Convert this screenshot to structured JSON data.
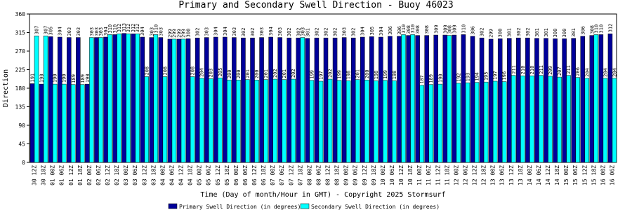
{
  "chart_data": {
    "type": "bar",
    "title": "Primary and Secondary Swell Direction - Buoy 46023",
    "x_label": "Time (Day of month/Hour in GMT) - Copyright 2025 Stormsurf",
    "y_label": "Direction",
    "categories": [
      "30 12Z",
      "30 18Z",
      "01 00Z",
      "01 06Z",
      "01 12Z",
      "01 18Z",
      "02 00Z",
      "02 06Z",
      "02 12Z",
      "02 18Z",
      "03 00Z",
      "03 06Z",
      "03 12Z",
      "03 18Z",
      "04 00Z",
      "04 06Z",
      "04 12Z",
      "04 18Z",
      "05 00Z",
      "05 06Z",
      "05 12Z",
      "05 18Z",
      "06 00Z",
      "06 06Z",
      "06 12Z",
      "06 18Z",
      "07 00Z",
      "07 06Z",
      "07 12Z",
      "07 18Z",
      "08 00Z",
      "08 06Z",
      "08 12Z",
      "08 18Z",
      "09 00Z",
      "09 06Z",
      "09 12Z",
      "09 18Z",
      "10 00Z",
      "10 06Z",
      "10 12Z",
      "10 18Z",
      "11 00Z",
      "11 06Z",
      "11 12Z",
      "11 18Z",
      "12 00Z",
      "12 06Z",
      "12 12Z",
      "12 18Z",
      "13 00Z",
      "13 06Z",
      "13 12Z",
      "13 18Z",
      "14 00Z",
      "14 06Z",
      "14 12Z",
      "14 18Z",
      "15 00Z",
      "15 06Z",
      "15 12Z",
      "15 18Z",
      "16 00Z",
      "16 06Z"
    ],
    "series": [
      {
        "name": "Primary Swell Direction (in degrees)",
        "color": "#000099",
        "values": [
          191,
          190,
          305,
          304,
          303,
          303,
          190,
          303,
          304,
          310,
          313,
          312,
          304,
          303,
          303,
          299,
          299,
          300,
          302,
          303,
          304,
          304,
          303,
          302,
          302,
          303,
          304,
          303,
          302,
          302,
          301,
          302,
          302,
          302,
          303,
          302,
          304,
          305,
          304,
          306,
          306,
          308,
          308,
          308,
          309,
          309,
          309,
          310,
          306,
          302,
          299,
          300,
          301,
          302,
          302,
          301,
          301,
          300,
          300,
          301,
          306,
          308,
          310,
          312
        ]
      },
      {
        "name": "Secondary Swell Direction (in degrees)",
        "color": "#00ffff",
        "values": [
          307,
          307,
          190,
          190,
          189,
          189,
          303,
          303,
          310,
          312,
          312,
          312,
          208,
          310,
          208,
          299,
          299,
          208,
          204,
          203,
          205,
          200,
          200,
          201,
          200,
          201,
          202,
          201,
          202,
          303,
          199,
          197,
          202,
          199,
          198,
          201,
          200,
          198,
          199,
          198,
          310,
          310,
          187,
          189,
          190,
          308,
          192,
          193,
          194,
          195,
          197,
          196,
          211,
          210,
          210,
          211,
          209,
          207,
          211,
          206,
          204,
          310,
          204,
          204
        ]
      }
    ],
    "ylim": [
      0,
      360
    ],
    "yticks": [
      0,
      45,
      90,
      135,
      180,
      225,
      270,
      315,
      360
    ]
  }
}
